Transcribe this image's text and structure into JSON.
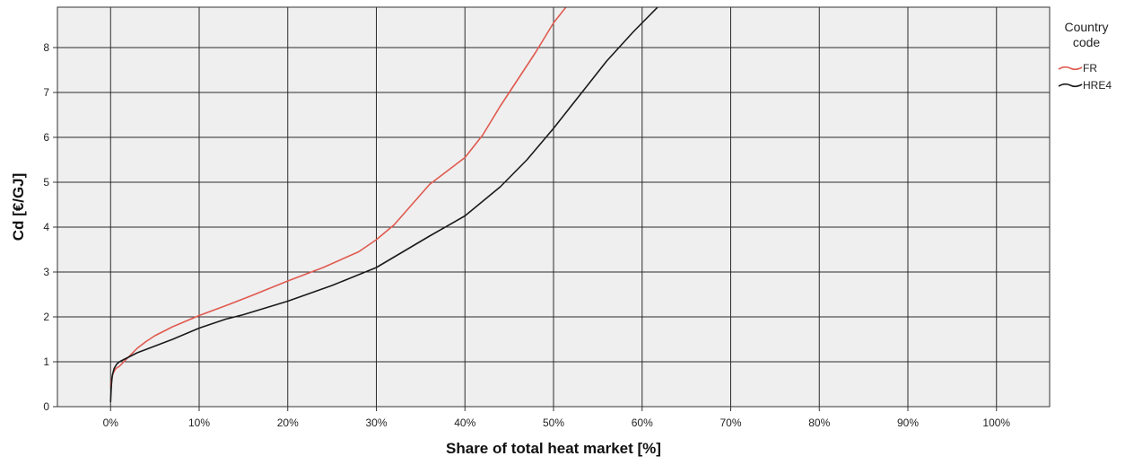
{
  "chart_data": {
    "type": "line",
    "title": "",
    "xlabel": "Share of total heat market [%]",
    "ylabel": "Cd [€/GJ]",
    "xlim": [
      -6,
      106
    ],
    "ylim": [
      0,
      8.9
    ],
    "x_ticks": [
      0,
      10,
      20,
      30,
      40,
      50,
      60,
      70,
      80,
      90,
      100
    ],
    "x_tick_labels": [
      "0%",
      "10%",
      "20%",
      "30%",
      "40%",
      "50%",
      "60%",
      "70%",
      "80%",
      "90%",
      "100%"
    ],
    "y_ticks": [
      0,
      1,
      2,
      3,
      4,
      5,
      6,
      7,
      8
    ],
    "y_tick_labels": [
      "0",
      "1",
      "2",
      "3",
      "4",
      "5",
      "6",
      "7",
      "8"
    ],
    "grid": true,
    "legend": {
      "title_lines": [
        "Country",
        "code"
      ],
      "placement": "right"
    },
    "series": [
      {
        "name": "FR",
        "color": "#e05a4f",
        "x": [
          0,
          0.1,
          0.3,
          0.6,
          1,
          2,
          3,
          4,
          5,
          7,
          10,
          13,
          16,
          20,
          24,
          28,
          30,
          32,
          34,
          36,
          38,
          40,
          42,
          44,
          46,
          48,
          50,
          52
        ],
        "y": [
          0.45,
          0.6,
          0.75,
          0.85,
          0.9,
          1.1,
          1.3,
          1.45,
          1.58,
          1.78,
          2.03,
          2.25,
          2.48,
          2.8,
          3.1,
          3.45,
          3.72,
          4.05,
          4.5,
          4.95,
          5.25,
          5.55,
          6.05,
          6.7,
          7.3,
          7.9,
          8.55,
          9.05
        ]
      },
      {
        "name": "HRE4",
        "color": "#1a1a1a",
        "x": [
          0,
          0.05,
          0.1,
          0.2,
          0.4,
          0.7,
          1,
          1.5,
          2,
          3,
          5,
          7,
          10,
          13,
          15,
          20,
          25,
          30,
          33,
          36,
          40,
          44,
          47,
          50,
          53,
          56,
          59,
          62
        ],
        "y": [
          0.1,
          0.3,
          0.5,
          0.7,
          0.85,
          0.95,
          1.0,
          1.05,
          1.1,
          1.2,
          1.35,
          1.5,
          1.75,
          1.95,
          2.05,
          2.35,
          2.7,
          3.1,
          3.45,
          3.8,
          4.25,
          4.9,
          5.5,
          6.2,
          6.95,
          7.7,
          8.35,
          8.95
        ]
      }
    ]
  }
}
